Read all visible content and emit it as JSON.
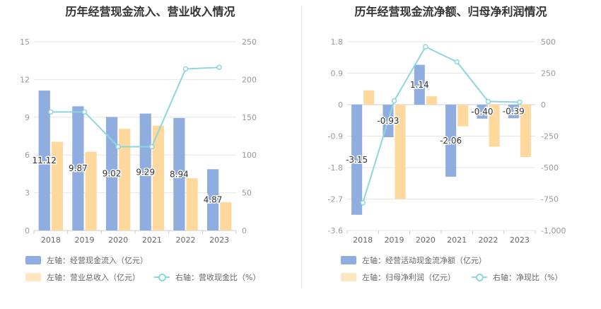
{
  "colors": {
    "blue": "#8fadde",
    "orange": "#fed89c",
    "cyan": "#8ed6dd",
    "grid": "#e6e6e6",
    "axis": "#999999"
  },
  "left_chart": {
    "title": "历年经营现金流入、营业收入情况",
    "legend": {
      "bar1": "左轴：经营现金流入（亿元）",
      "bar2": "左轴：营业总收入（亿元）",
      "line": "右轴：营收现金比（%）"
    }
  },
  "right_chart": {
    "title": "历年经营现金流净额、归母净利润情况",
    "legend": {
      "bar1": "左轴：经营活动现金流净额（亿元）",
      "bar2": "左轴：归母净利润（亿元）",
      "line": "右轴：净现比（%）"
    }
  },
  "chart_data": [
    {
      "type": "bar",
      "title": "历年经营现金流入、营业收入情况",
      "categories": [
        "2018",
        "2019",
        "2020",
        "2021",
        "2022",
        "2023"
      ],
      "y_left": {
        "ticks": [
          "0",
          "3",
          "6",
          "9",
          "12",
          "15"
        ],
        "min": 0,
        "max": 15
      },
      "y_right": {
        "ticks": [
          "0",
          "50",
          "100",
          "150",
          "200",
          "250"
        ],
        "min": 0,
        "max": 250
      },
      "series": [
        {
          "name": "左轴：经营现金流入（亿元）",
          "axis": "left",
          "type": "bar",
          "values": [
            11.12,
            9.87,
            9.02,
            9.29,
            8.94,
            4.87
          ],
          "labels": [
            "11.12",
            "9.87",
            "9.02",
            "9.29",
            "8.94",
            "4.87"
          ]
        },
        {
          "name": "左轴：营业总收入（亿元）",
          "axis": "left",
          "type": "bar",
          "values": [
            7.05,
            6.25,
            8.08,
            8.33,
            4.15,
            2.25
          ]
        },
        {
          "name": "右轴：营收现金比（%）",
          "axis": "right",
          "type": "line",
          "values": [
            157,
            157,
            111,
            111,
            214,
            216
          ]
        }
      ]
    },
    {
      "type": "bar",
      "title": "历年经营现金流净额、归母净利润情况",
      "categories": [
        "2018",
        "2019",
        "2020",
        "2021",
        "2022",
        "2023"
      ],
      "y_left": {
        "ticks": [
          "-3.6",
          "-2.7",
          "-1.8",
          "-0.9",
          "0",
          "0.9",
          "1.8"
        ],
        "min": -3.6,
        "max": 1.8
      },
      "y_right": {
        "ticks": [
          "-1,000",
          "-750",
          "-500",
          "-250",
          "0",
          "250",
          "500"
        ],
        "min": -1000,
        "max": 500
      },
      "series": [
        {
          "name": "左轴：经营活动现金流净额（亿元）",
          "axis": "left",
          "type": "bar",
          "values": [
            -3.15,
            -0.93,
            1.14,
            -2.06,
            -0.4,
            -0.39
          ],
          "labels": [
            "-3.15",
            "-0.93",
            "1.14",
            "-2.06",
            "-0.40",
            "-0.39"
          ]
        },
        {
          "name": "左轴：归母净利润（亿元）",
          "axis": "left",
          "type": "bar",
          "values": [
            0.41,
            -2.7,
            0.24,
            -0.62,
            -1.2,
            -1.5
          ]
        },
        {
          "name": "右轴：净现比（%）",
          "axis": "right",
          "type": "line",
          "values": [
            -780,
            30,
            460,
            340,
            25,
            20
          ]
        }
      ]
    }
  ]
}
